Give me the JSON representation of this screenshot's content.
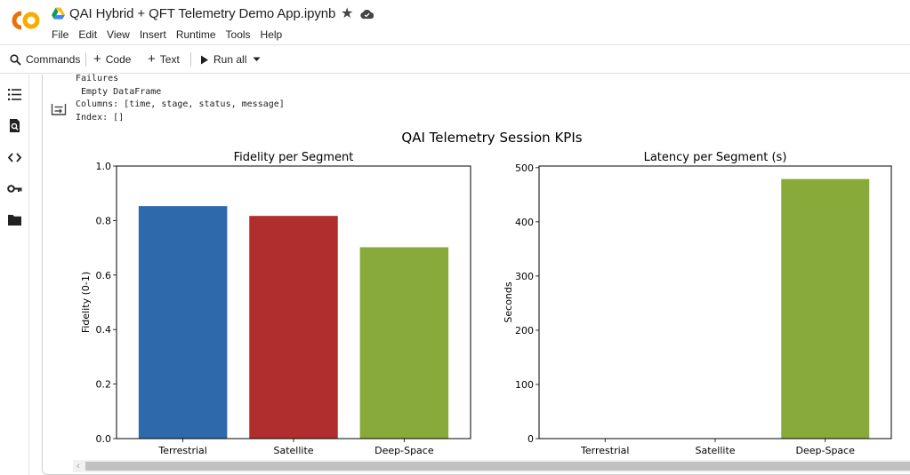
{
  "header": {
    "title": "QAI Hybrid + QFT Telemetry Demo App.ipynb",
    "logo_text": "CO",
    "icons": [
      "drive-icon",
      "star-icon",
      "cloud-saved-icon"
    ]
  },
  "menu": [
    "File",
    "Edit",
    "View",
    "Insert",
    "Runtime",
    "Tools",
    "Help"
  ],
  "toolbar": {
    "commands_label": "Commands",
    "code_label": "Code",
    "text_label": "Text",
    "run_all_label": "Run all"
  },
  "siderail": [
    "table-of-contents-icon",
    "find-replace-icon",
    "code-snippets-icon",
    "secrets-key-icon",
    "files-folder-icon"
  ],
  "output": {
    "lines": [
      "Failures",
      " Empty DataFrame",
      "Columns: [time, stage, status, message]",
      "Index: []"
    ]
  },
  "figure": {
    "suptitle": "QAI Telemetry Session KPIs"
  },
  "colors": {
    "terrestrial": "#2e69ab",
    "satellite": "#b02f2c",
    "deep_space": "#88aa3b",
    "logo_orange": "#f9ab00",
    "logo_dark_orange": "#e8710a"
  },
  "chart_data": [
    {
      "type": "bar",
      "title": "Fidelity per Segment",
      "xlabel": "",
      "ylabel": "Fidelity (0-1)",
      "categories": [
        "Terrestrial",
        "Satellite",
        "Deep-Space"
      ],
      "values": [
        0.853,
        0.817,
        0.702
      ],
      "ylim": [
        0,
        1.0
      ],
      "yticks": [
        "0.0",
        "0.2",
        "0.4",
        "0.6",
        "0.8",
        "1.0"
      ],
      "colors": [
        "#2e69ab",
        "#b02f2c",
        "#88aa3b"
      ],
      "grid": false
    },
    {
      "type": "bar",
      "title": "Latency per Segment (s)",
      "xlabel": "",
      "ylabel": "Seconds",
      "categories": [
        "Terrestrial",
        "Satellite",
        "Deep-Space"
      ],
      "values": [
        0.04,
        0.27,
        479
      ],
      "ylim": [
        0,
        503
      ],
      "yticks": [
        "0",
        "100",
        "200",
        "300",
        "400",
        "500"
      ],
      "colors": [
        "#2e69ab",
        "#b02f2c",
        "#88aa3b"
      ],
      "grid": false
    }
  ]
}
